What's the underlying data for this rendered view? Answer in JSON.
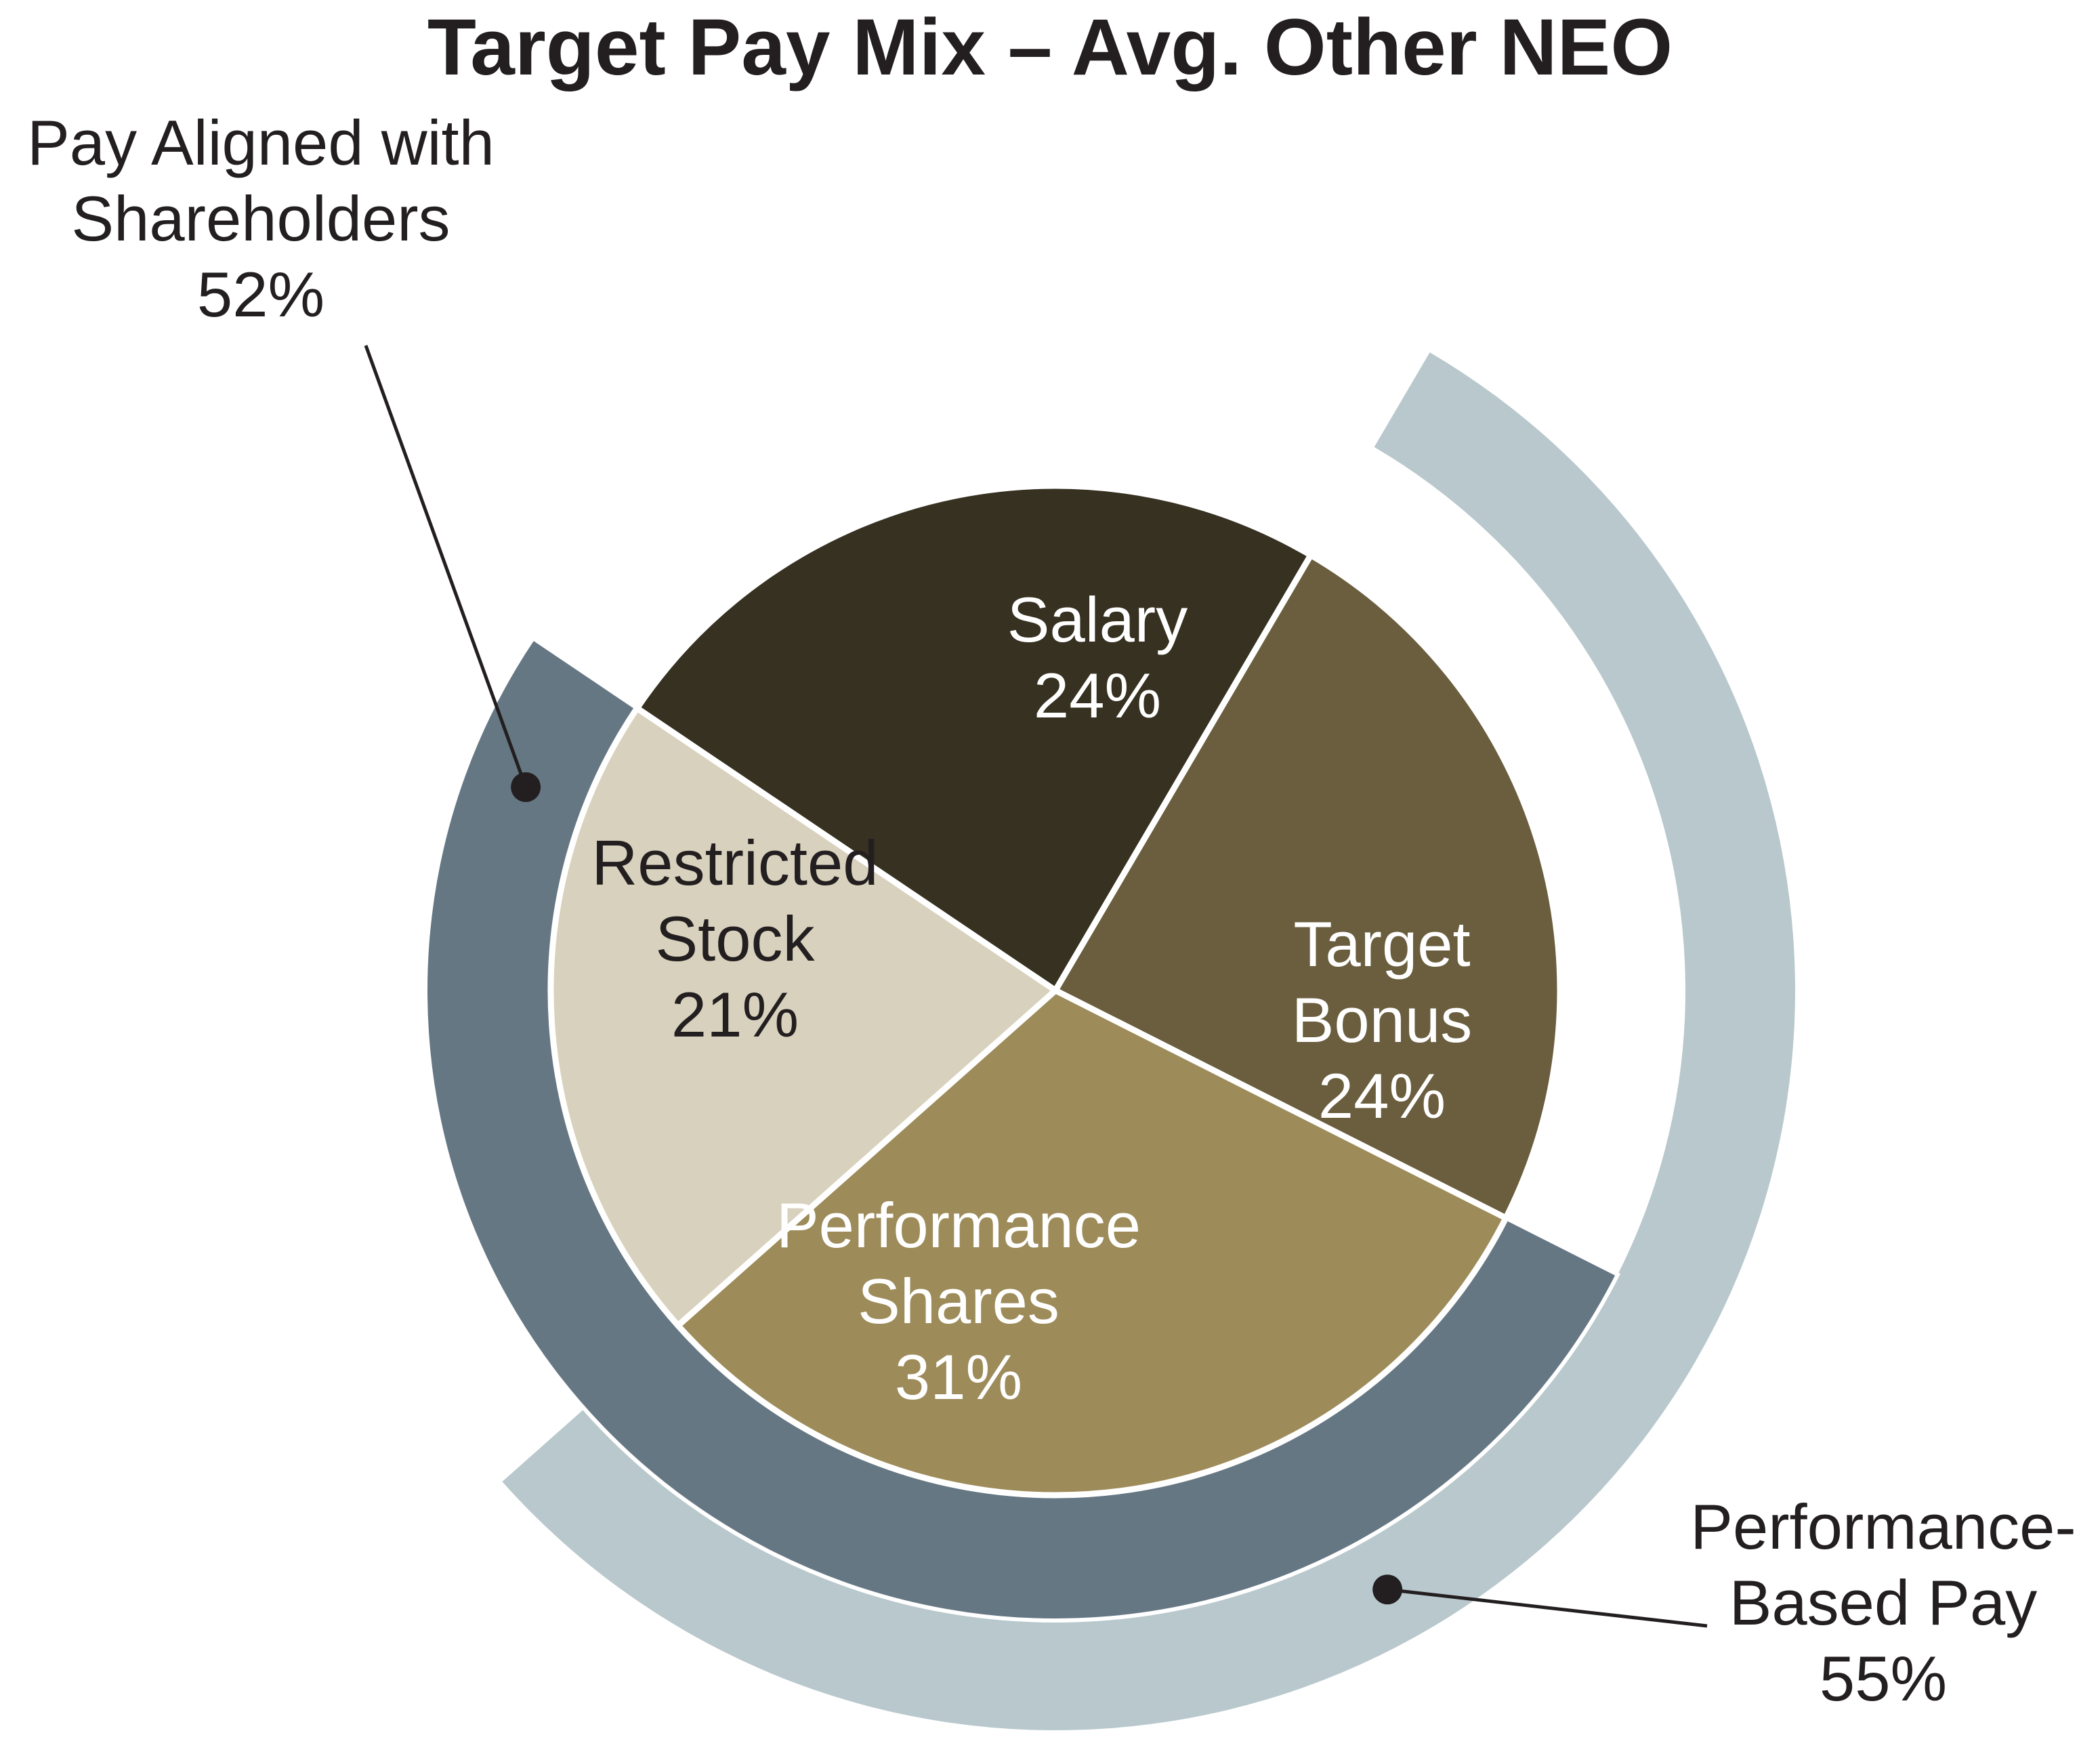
{
  "chart_data": {
    "type": "pie",
    "title": "Target Pay Mix – Avg. Other NEO",
    "slices": [
      {
        "name": "salary",
        "label_lines": [
          "Salary",
          "24%"
        ],
        "value": 24,
        "color": "#363120",
        "text_color": "#ffffff"
      },
      {
        "name": "target-bonus",
        "label_lines": [
          "Target",
          "Bonus",
          "24%"
        ],
        "value": 24,
        "color": "#6a5e3e",
        "text_color": "#ffffff"
      },
      {
        "name": "performance-shares",
        "label_lines": [
          "Performance",
          "Shares",
          "31%"
        ],
        "value": 31,
        "color": "#9d8b5a",
        "text_color": "#ffffff"
      },
      {
        "name": "restricted-stock",
        "label_lines": [
          "Restricted",
          "Stock",
          "21%"
        ],
        "value": 21,
        "color": "#d8d1bd",
        "text_color": "#231f20"
      }
    ],
    "groupings": [
      {
        "name": "pay-aligned-with-shareholders",
        "label_lines": [
          "Pay Aligned with",
          "Shareholders",
          "52%"
        ],
        "value": 52,
        "covers": [
          "performance-shares",
          "restricted-stock"
        ],
        "color": "#667784"
      },
      {
        "name": "performance-based-pay",
        "label_lines": [
          "Performance-",
          "Based Pay",
          "55%"
        ],
        "value": 55,
        "covers": [
          "target-bonus",
          "performance-shares"
        ],
        "color": "#b8c8cd"
      }
    ]
  }
}
